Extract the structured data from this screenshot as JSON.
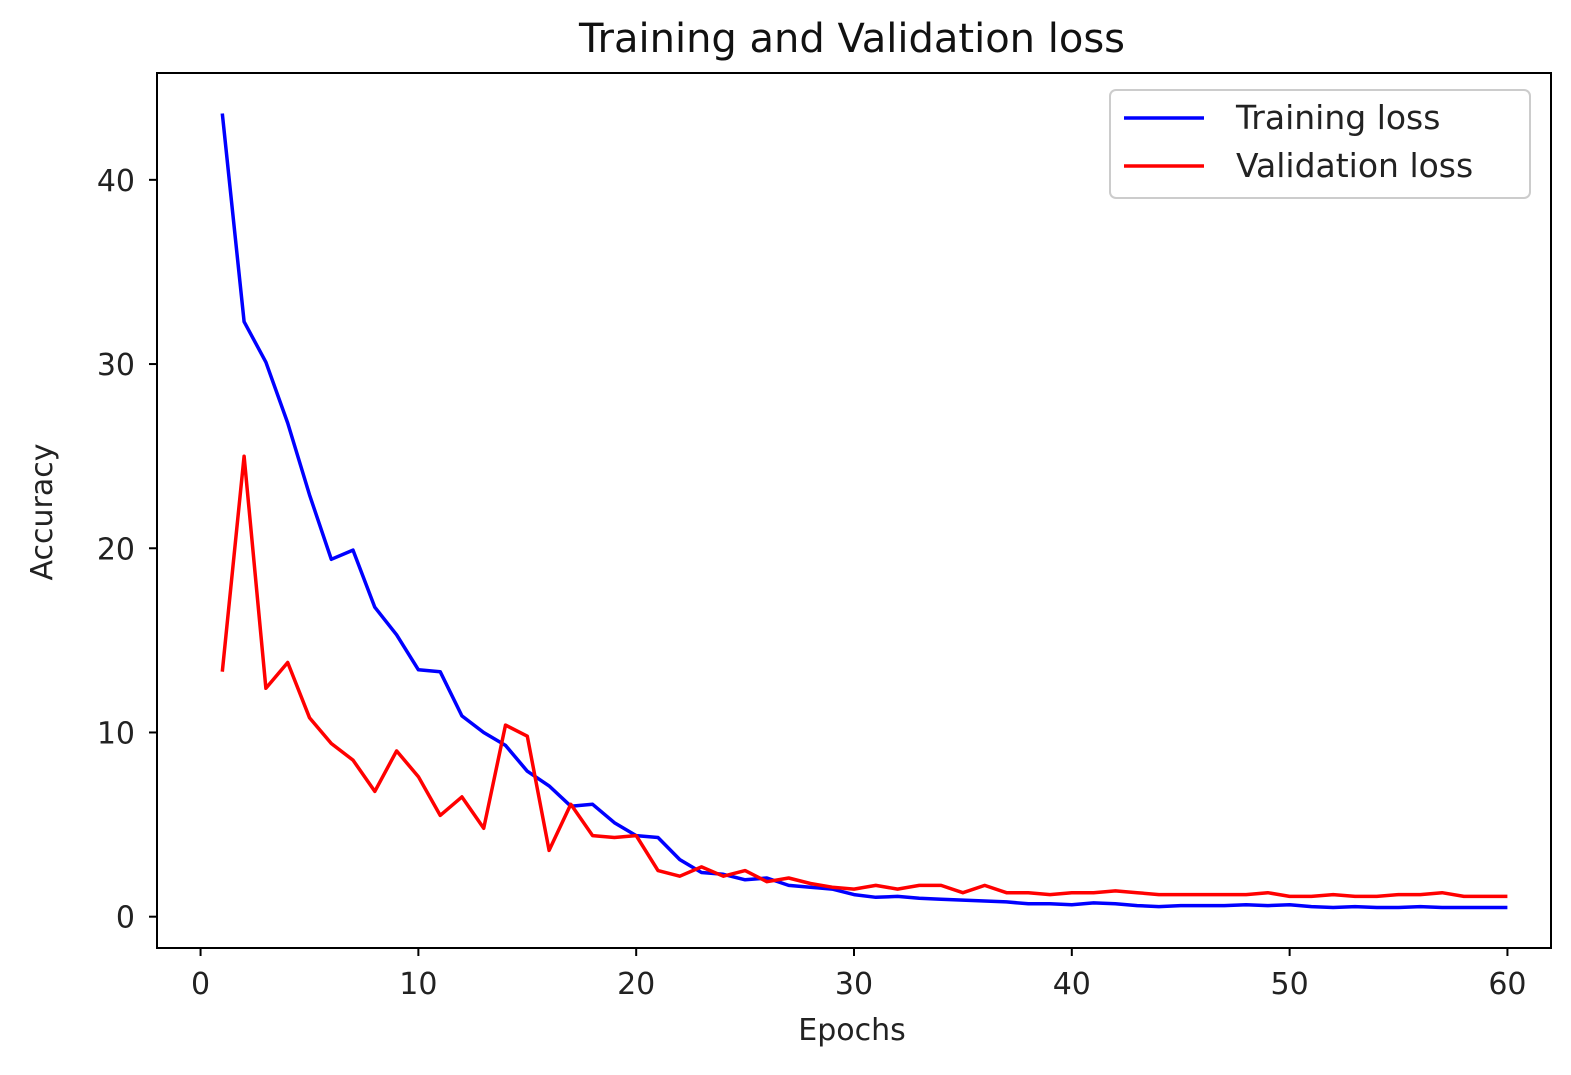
{
  "chart_data": {
    "type": "line",
    "title": "Training and Validation loss",
    "xlabel": "Epochs",
    "ylabel": "Accuracy",
    "xlim": [
      -2,
      62
    ],
    "ylim": [
      -1.7,
      45.8
    ],
    "xticks": [
      0,
      10,
      20,
      30,
      40,
      50,
      60
    ],
    "yticks": [
      0,
      10,
      20,
      30,
      40
    ],
    "grid": false,
    "legend_position": "top-right",
    "x": [
      1,
      2,
      3,
      4,
      5,
      6,
      7,
      8,
      9,
      10,
      11,
      12,
      13,
      14,
      15,
      16,
      17,
      18,
      19,
      20,
      21,
      22,
      23,
      24,
      25,
      26,
      27,
      28,
      29,
      30,
      31,
      32,
      33,
      34,
      35,
      36,
      37,
      38,
      39,
      40,
      41,
      42,
      43,
      44,
      45,
      46,
      47,
      48,
      49,
      50,
      51,
      52,
      53,
      54,
      55,
      56,
      57,
      58,
      59,
      60
    ],
    "series": [
      {
        "name": "Training loss",
        "color": "#0000ff",
        "values": [
          43.6,
          32.3,
          30.1,
          26.8,
          22.9,
          19.4,
          19.9,
          16.8,
          15.3,
          13.4,
          13.3,
          10.9,
          10.0,
          9.3,
          7.9,
          7.1,
          6.0,
          6.1,
          5.1,
          4.4,
          4.3,
          3.1,
          2.4,
          2.3,
          2.0,
          2.1,
          1.7,
          1.6,
          1.5,
          1.2,
          1.05,
          1.1,
          1.0,
          0.95,
          0.9,
          0.85,
          0.8,
          0.7,
          0.7,
          0.65,
          0.75,
          0.7,
          0.6,
          0.55,
          0.6,
          0.6,
          0.6,
          0.65,
          0.6,
          0.65,
          0.55,
          0.5,
          0.55,
          0.5,
          0.5,
          0.55,
          0.5,
          0.5,
          0.5,
          0.5
        ]
      },
      {
        "name": "Validation loss",
        "color": "#ff0000",
        "values": [
          13.3,
          25.0,
          12.4,
          13.8,
          10.8,
          9.4,
          8.5,
          6.8,
          9.0,
          7.6,
          5.5,
          6.5,
          4.8,
          10.4,
          9.8,
          3.6,
          6.1,
          4.4,
          4.3,
          4.4,
          2.5,
          2.2,
          2.7,
          2.2,
          2.5,
          1.9,
          2.1,
          1.8,
          1.6,
          1.5,
          1.7,
          1.5,
          1.7,
          1.7,
          1.3,
          1.7,
          1.3,
          1.3,
          1.2,
          1.3,
          1.3,
          1.4,
          1.3,
          1.2,
          1.2,
          1.2,
          1.2,
          1.2,
          1.3,
          1.1,
          1.1,
          1.2,
          1.1,
          1.1,
          1.2,
          1.2,
          1.3,
          1.1,
          1.1,
          1.1
        ]
      }
    ]
  }
}
